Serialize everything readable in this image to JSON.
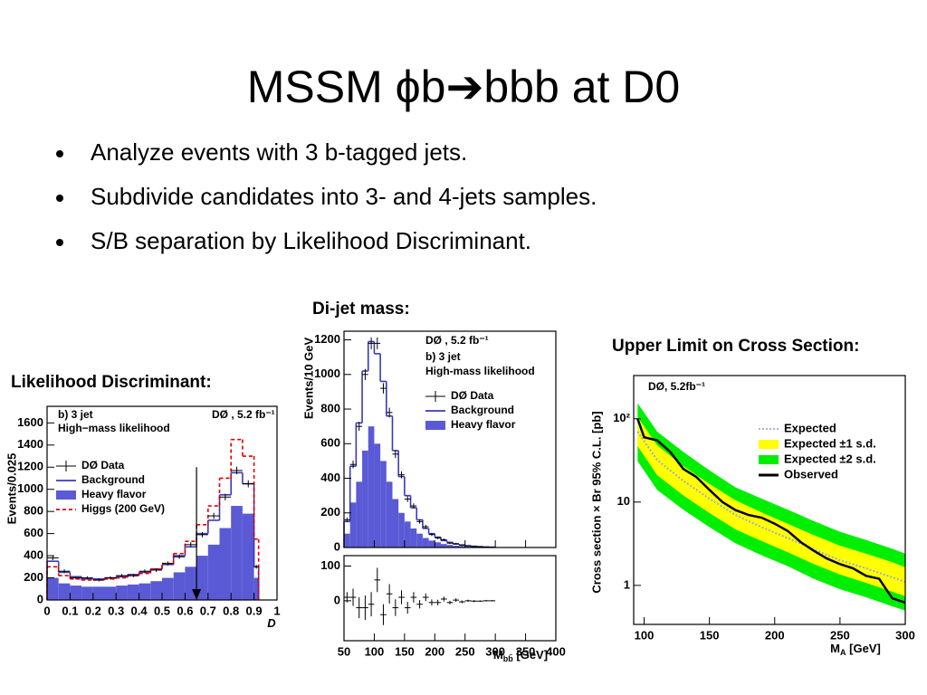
{
  "title": "MSSM ϕb➔bbb at D0",
  "bullets": [
    "Analyze events with 3 b-tagged jets.",
    "Subdivide candidates into 3- and 4-jets samples.",
    "S/B separation by Likelihood Discriminant."
  ],
  "figures": [
    {
      "type": "hist",
      "caption": "Likelihood Discriminant:",
      "ylabel": "Events/0.025",
      "xlabel": [
        "D"
      ],
      "annotations": [
        "b) 3 jet",
        "High−mass likelihood",
        "DØ , 5.2 fb⁻¹"
      ],
      "xlim": [
        0,
        1
      ],
      "xticks": [
        0,
        0.1,
        0.2,
        0.3,
        0.4,
        0.5,
        0.6,
        0.7,
        0.8,
        0.9,
        1
      ],
      "ylim": [
        0,
        1750
      ],
      "yticks": [
        0,
        200,
        400,
        600,
        800,
        1000,
        1200,
        1400,
        1600
      ],
      "bins": [
        0,
        0.05,
        0.1,
        0.15,
        0.2,
        0.25,
        0.3,
        0.35,
        0.4,
        0.45,
        0.5,
        0.55,
        0.6,
        0.65,
        0.7,
        0.75,
        0.8,
        0.85,
        0.9,
        0.92
      ],
      "cut": 0.65,
      "cut_top": 1200,
      "series": [
        {
          "name": "DØ  Data",
          "style": "points",
          "color": "#000000",
          "values": [
            380,
            260,
            200,
            200,
            180,
            200,
            220,
            220,
            260,
            270,
            330,
            390,
            500,
            590,
            760,
            930,
            1170,
            1050,
            300
          ],
          "errors": [
            20,
            16,
            14,
            14,
            13,
            14,
            15,
            15,
            16,
            16,
            18,
            20,
            22,
            24,
            28,
            30,
            34,
            32,
            17
          ]
        },
        {
          "name": "Background",
          "style": "line",
          "color": "#3a3ab8",
          "values": [
            350,
            250,
            210,
            190,
            190,
            200,
            210,
            230,
            250,
            280,
            320,
            400,
            480,
            600,
            720,
            950,
            1150,
            1050,
            300
          ]
        },
        {
          "name": "Heavy flavor",
          "style": "fill",
          "color": "#5a5ad6",
          "values": [
            200,
            150,
            130,
            120,
            120,
            120,
            130,
            140,
            150,
            170,
            200,
            250,
            300,
            400,
            500,
            650,
            850,
            780,
            200
          ]
        },
        {
          "name": "Higgs (200 GeV)",
          "style": "dashed",
          "color": "#e00000",
          "values": [
            300,
            220,
            190,
            180,
            180,
            190,
            200,
            220,
            240,
            280,
            330,
            420,
            530,
            680,
            850,
            1100,
            1450,
            1300,
            550
          ]
        }
      ]
    },
    {
      "type": "hist",
      "caption": "Di-jet mass:",
      "ylabel": "Events/10 GeV",
      "xlabel": [
        "M",
        "bb̄",
        " [GeV]"
      ],
      "annotations": [
        "DØ , 5.2 fb⁻¹",
        "b) 3 jet",
        "High-mass likelihood"
      ],
      "xlim": [
        50,
        400
      ],
      "xticks": [
        50,
        100,
        150,
        200,
        250,
        300,
        350,
        400
      ],
      "ylim": [
        0,
        1250
      ],
      "yticks": [
        0,
        200,
        400,
        600,
        800,
        1000,
        1200
      ],
      "bins": [
        50,
        60,
        70,
        80,
        90,
        100,
        110,
        120,
        130,
        140,
        150,
        160,
        170,
        180,
        190,
        200,
        210,
        220,
        230,
        240,
        250,
        260,
        270,
        280,
        290,
        300
      ],
      "series": [
        {
          "name": "DØ  Data",
          "style": "points",
          "color": "#000000",
          "values": [
            160,
            480,
            700,
            1000,
            1180,
            1180,
            920,
            780,
            540,
            420,
            280,
            240,
            150,
            120,
            75,
            55,
            45,
            25,
            22,
            12,
            10,
            6,
            4,
            3,
            2
          ],
          "errors": [
            13,
            22,
            26,
            32,
            34,
            34,
            30,
            28,
            23,
            20,
            17,
            15,
            12,
            11,
            9,
            7,
            7,
            5,
            5,
            3,
            3,
            2,
            2,
            2,
            1
          ]
        },
        {
          "name": "Background",
          "style": "line",
          "color": "#3a3ab8",
          "values": [
            150,
            470,
            720,
            1020,
            1190,
            1120,
            960,
            760,
            560,
            410,
            300,
            230,
            160,
            110,
            80,
            60,
            40,
            30,
            20,
            15,
            10,
            7,
            5,
            3,
            2
          ]
        },
        {
          "name": "Heavy flavor",
          "style": "fill",
          "color": "#5a5ad6",
          "values": [
            80,
            260,
            380,
            560,
            700,
            600,
            500,
            380,
            280,
            200,
            150,
            110,
            80,
            55,
            40,
            30,
            20,
            15,
            10,
            7,
            5,
            3,
            2,
            1,
            1
          ]
        }
      ],
      "residuals": {
        "ylim": [
          -115,
          130
        ],
        "yticks": [
          0,
          100
        ],
        "values": [
          10,
          10,
          -20,
          -20,
          -10,
          60,
          -40,
          20,
          -20,
          10,
          -20,
          10,
          -10,
          10,
          -5,
          -5,
          5,
          -5,
          2,
          -3,
          0,
          -1,
          -1,
          0,
          0
        ],
        "errors": [
          15,
          25,
          30,
          35,
          35,
          35,
          30,
          28,
          24,
          20,
          17,
          15,
          12,
          11,
          9,
          8,
          7,
          5,
          5,
          4,
          3,
          3,
          2,
          2,
          2
        ]
      }
    },
    {
      "type": "limit",
      "caption": "Upper Limit on Cross Section:",
      "ylabel": "Cross section × Br 95% C.L. [pb]",
      "xlabel": [
        "M",
        "A",
        " [GeV]"
      ],
      "annotations": [
        "DØ, 5.2fb⁻¹"
      ],
      "log_y": true,
      "xlim": [
        92,
        300
      ],
      "xticks": [
        100,
        150,
        200,
        250,
        300
      ],
      "ylim": [
        0.34,
        330
      ],
      "yticks": [
        1,
        10,
        {
          "value": 100,
          "label": "10²"
        }
      ],
      "x": [
        95,
        110,
        130,
        150,
        170,
        190,
        210,
        230,
        250,
        270,
        290,
        300
      ],
      "series": [
        {
          "name": "Expected",
          "style": "dotted",
          "color": "#a0a8d8",
          "values": [
            70,
            32,
            18,
            11,
            7,
            5,
            3.7,
            2.7,
            2,
            1.6,
            1.25,
            1.1
          ]
        },
        {
          "name": "Expected ±1 s.d.",
          "style": "band",
          "color": "#ffff00",
          "upper": [
            105,
            48,
            27,
            16.5,
            10.5,
            7.5,
            5.5,
            4,
            3,
            2.4,
            1.9,
            1.65
          ],
          "lower": [
            47,
            21,
            12,
            7.4,
            4.7,
            3.4,
            2.5,
            1.8,
            1.35,
            1.07,
            0.84,
            0.74
          ]
        },
        {
          "name": "Expected ±2 s.d.",
          "style": "band",
          "color": "#00ee00",
          "upper": [
            154,
            70,
            40,
            24,
            15,
            11,
            8.1,
            5.9,
            4.4,
            3.5,
            2.75,
            2.4
          ],
          "lower": [
            31,
            14,
            8.1,
            5,
            3.2,
            2.3,
            1.7,
            1.2,
            0.9,
            0.72,
            0.56,
            0.5
          ]
        },
        {
          "name": "Observed",
          "style": "line",
          "color": "#000000",
          "x": [
            95,
            100,
            110,
            120,
            130,
            140,
            150,
            160,
            170,
            180,
            190,
            200,
            210,
            220,
            230,
            240,
            250,
            260,
            270,
            280,
            290,
            300
          ],
          "values": [
            100,
            60,
            55,
            40,
            25,
            20,
            14,
            10,
            8,
            7,
            6.5,
            5.5,
            4.5,
            3.3,
            2.6,
            2.1,
            1.8,
            1.6,
            1.3,
            1.2,
            0.7,
            0.62
          ]
        }
      ]
    }
  ]
}
